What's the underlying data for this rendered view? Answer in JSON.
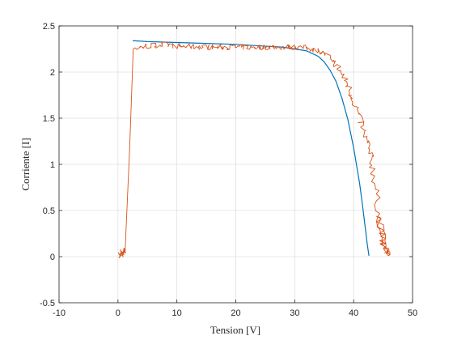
{
  "chart_data": {
    "type": "line",
    "title": "",
    "xlabel": "Tension [V]",
    "ylabel": "Corriente [I]",
    "xlim": [
      -10,
      50
    ],
    "ylim": [
      -0.5,
      2.5
    ],
    "xticks": [
      -10,
      0,
      10,
      20,
      30,
      40,
      50
    ],
    "yticks": [
      -0.5,
      0,
      0.5,
      1,
      1.5,
      2,
      2.5
    ],
    "xtick_labels": [
      "-10",
      "0",
      "10",
      "20",
      "30",
      "40",
      "50"
    ],
    "ytick_labels": [
      "-0.5",
      "0",
      "0.5",
      "1",
      "1.5",
      "2",
      "2.5"
    ],
    "grid": true,
    "legend": "none",
    "series": [
      {
        "color": "#0072BD",
        "style": "smooth",
        "x": [
          2.5,
          5,
          10,
          15,
          20,
          25,
          28,
          30,
          32,
          33,
          34,
          35,
          36,
          37,
          38,
          39,
          40,
          41,
          41.5,
          42,
          42.3,
          42.6
        ],
        "y": [
          2.34,
          2.33,
          2.32,
          2.31,
          2.3,
          2.28,
          2.27,
          2.25,
          2.23,
          2.2,
          2.17,
          2.11,
          2.02,
          1.9,
          1.72,
          1.49,
          1.18,
          0.8,
          0.56,
          0.3,
          0.14,
          0.01
        ]
      },
      {
        "color": "#D95319",
        "style": "noisy",
        "x": [
          0.3,
          0.5,
          0.7,
          0.9,
          1.1,
          1.0,
          0.6,
          0.4,
          0.8,
          1.2,
          2.0,
          2.6,
          3,
          5,
          8,
          10,
          15,
          20,
          25,
          28,
          30,
          32,
          33,
          34,
          35,
          36,
          37,
          38,
          39,
          40,
          41,
          42,
          43,
          43.5,
          44,
          44.5,
          45,
          45.5,
          46,
          46.2,
          45.6,
          44.8,
          44.2,
          44.6,
          45.2
        ],
        "y": [
          0.02,
          0.06,
          0.01,
          0.09,
          0.03,
          0.07,
          0.04,
          0.0,
          0.05,
          0.04,
          1.2,
          2.27,
          2.26,
          2.28,
          2.3,
          2.28,
          2.27,
          2.27,
          2.27,
          2.27,
          2.27,
          2.26,
          2.25,
          2.23,
          2.2,
          2.15,
          2.08,
          1.98,
          1.86,
          1.7,
          1.5,
          1.3,
          1.05,
          0.85,
          0.6,
          0.36,
          0.16,
          0.05,
          0.02,
          0.03,
          0.1,
          0.25,
          0.45,
          0.15,
          0.04
        ]
      }
    ]
  }
}
